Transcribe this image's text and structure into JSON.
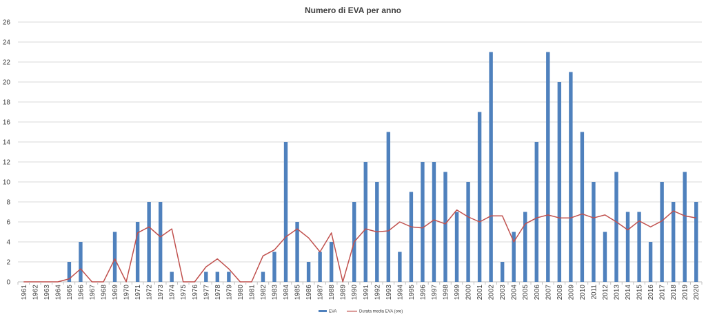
{
  "chart_data": {
    "type": "bar",
    "title": "Numero di EVA per anno",
    "xlabel": "",
    "ylabel": "",
    "ylim": [
      0,
      26
    ],
    "yticks": [
      0,
      2,
      4,
      6,
      8,
      10,
      12,
      14,
      16,
      18,
      20,
      22,
      24,
      26
    ],
    "grid": true,
    "legend_position": "bottom",
    "categories": [
      "1961",
      "1962",
      "1963",
      "1964",
      "1965",
      "1966",
      "1967",
      "1968",
      "1969",
      "1970",
      "1971",
      "1972",
      "1973",
      "1974",
      "1975",
      "1976",
      "1977",
      "1978",
      "1979",
      "1980",
      "1981",
      "1982",
      "1983",
      "1984",
      "1985",
      "1986",
      "1987",
      "1988",
      "1989",
      "1990",
      "1991",
      "1992",
      "1993",
      "1994",
      "1995",
      "1996",
      "1997",
      "1998",
      "1999",
      "2000",
      "2001",
      "2002",
      "2003",
      "2004",
      "2005",
      "2006",
      "2007",
      "2008",
      "2009",
      "2010",
      "2011",
      "2012",
      "2013",
      "2014",
      "2015",
      "2016",
      "2017",
      "2018",
      "2019",
      "2020"
    ],
    "series": [
      {
        "name": "EVA",
        "kind": "bar",
        "color": "#4f81bd",
        "values": [
          0,
          0,
          0,
          0,
          2,
          4,
          0,
          0,
          5,
          0,
          6,
          8,
          8,
          1,
          0,
          0,
          1,
          1,
          1,
          0,
          0,
          1,
          3,
          14,
          6,
          2,
          3,
          4,
          0,
          8,
          12,
          10,
          15,
          3,
          9,
          12,
          12,
          11,
          7,
          10,
          17,
          23,
          2,
          5,
          7,
          14,
          23,
          20,
          21,
          15,
          10,
          5,
          11,
          7,
          7,
          4,
          10,
          8,
          11,
          8
        ]
      },
      {
        "name": "Durata media EVA (ore)",
        "kind": "line",
        "color": "#c0504d",
        "values": [
          0,
          0,
          0,
          0,
          0.3,
          1.3,
          0,
          0,
          2.3,
          0,
          4.9,
          5.5,
          4.5,
          5.3,
          0,
          0,
          1.5,
          2.3,
          1.3,
          0,
          0,
          2.6,
          3.2,
          4.5,
          5.3,
          4.4,
          3.0,
          4.9,
          0,
          4.0,
          5.3,
          5.0,
          5.1,
          6.0,
          5.5,
          5.4,
          6.2,
          5.8,
          7.2,
          6.5,
          6.0,
          6.6,
          6.6,
          4.0,
          5.8,
          6.4,
          6.7,
          6.4,
          6.4,
          6.8,
          6.4,
          6.7,
          6.0,
          5.2,
          6.1,
          5.5,
          6.1,
          7.1,
          6.6,
          6.4
        ]
      }
    ]
  }
}
